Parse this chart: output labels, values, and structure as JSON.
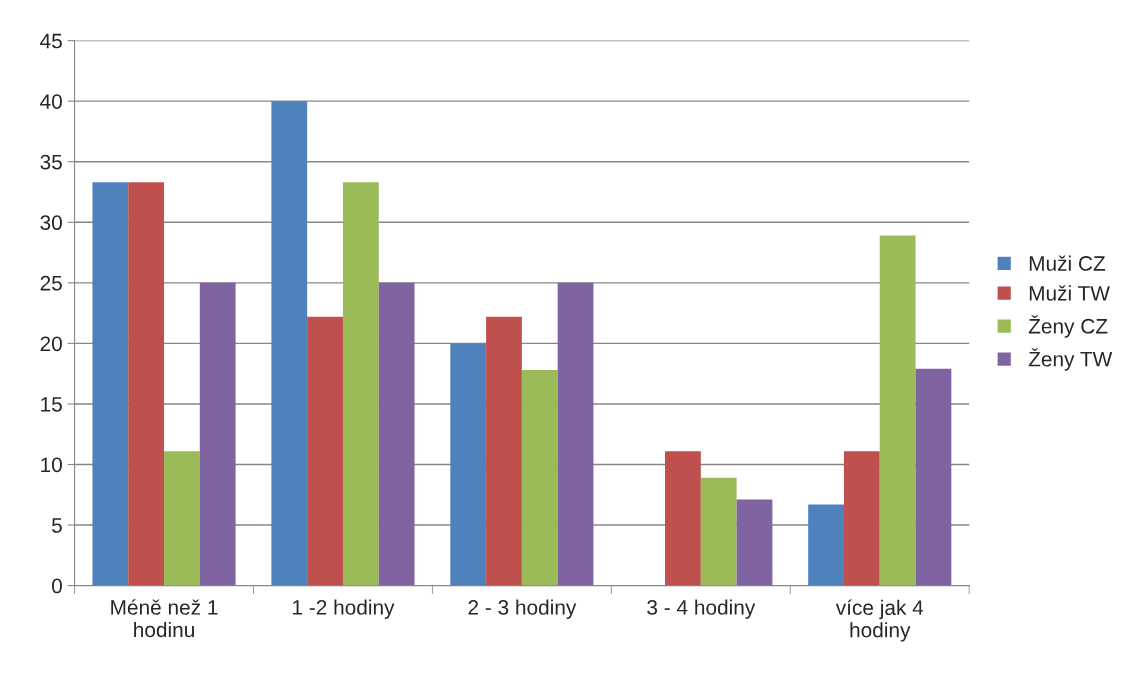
{
  "chart_data": {
    "type": "bar",
    "categories": [
      "Méně než 1\nhodinu",
      "1 -2 hodiny",
      "2 - 3 hodiny",
      "3 - 4 hodiny",
      "více jak 4\nhodiny"
    ],
    "series": [
      {
        "name": "Muži CZ",
        "color": "#4f81bd",
        "values": [
          33.3,
          40,
          20,
          0,
          6.7
        ]
      },
      {
        "name": "Muži TW",
        "color": "#c0504d",
        "values": [
          33.3,
          22.2,
          22.2,
          11.1,
          11.1
        ]
      },
      {
        "name": "Ženy CZ",
        "color": "#9bbb59",
        "values": [
          11.1,
          33.3,
          17.8,
          8.9,
          28.9
        ]
      },
      {
        "name": "Ženy TW",
        "color": "#8064a2",
        "values": [
          25,
          25,
          25,
          7.1,
          17.9
        ]
      }
    ],
    "ylim": [
      0,
      45
    ],
    "yticks": [
      0,
      5,
      10,
      15,
      20,
      25,
      30,
      35,
      40,
      45
    ],
    "grid": "y",
    "legend": "right"
  }
}
